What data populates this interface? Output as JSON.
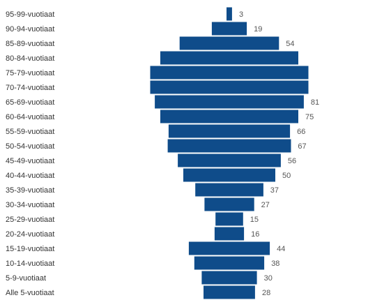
{
  "chart_data": {
    "type": "bar",
    "orientation": "horizontal",
    "layout": "centered-pyramid",
    "categories": [
      "95-99-vuotiaat",
      "90-94-vuotiaat",
      "85-89-vuotiaat",
      "80-84-vuotiaat",
      "75-79-vuotiaat",
      "70-74-vuotiaat",
      "65-69-vuotiaat",
      "60-64-vuotiaat",
      "55-59-vuotiaat",
      "50-54-vuotiaat",
      "45-49-vuotiaat",
      "40-44-vuotiaat",
      "35-39-vuotiaat",
      "30-34-vuotiaat",
      "25-29-vuotiaat",
      "20-24-vuotiaat",
      "15-19-vuotiaat",
      "10-14-vuotiaat",
      "5-9-vuotiaat",
      "Alle 5-vuotiaat"
    ],
    "values": [
      3,
      19,
      54,
      75,
      86,
      86,
      81,
      75,
      66,
      67,
      56,
      50,
      37,
      27,
      15,
      16,
      44,
      38,
      30,
      28
    ],
    "data_labels": [
      "3",
      "19",
      "54",
      "",
      "",
      "",
      "81",
      "75",
      "66",
      "67",
      "56",
      "50",
      "37",
      "27",
      "15",
      "16",
      "44",
      "38",
      "30",
      "28"
    ],
    "bar_color": "#0f4c8a",
    "title": "",
    "xlabel": "",
    "ylabel": "",
    "grid": false,
    "legend": "none"
  }
}
